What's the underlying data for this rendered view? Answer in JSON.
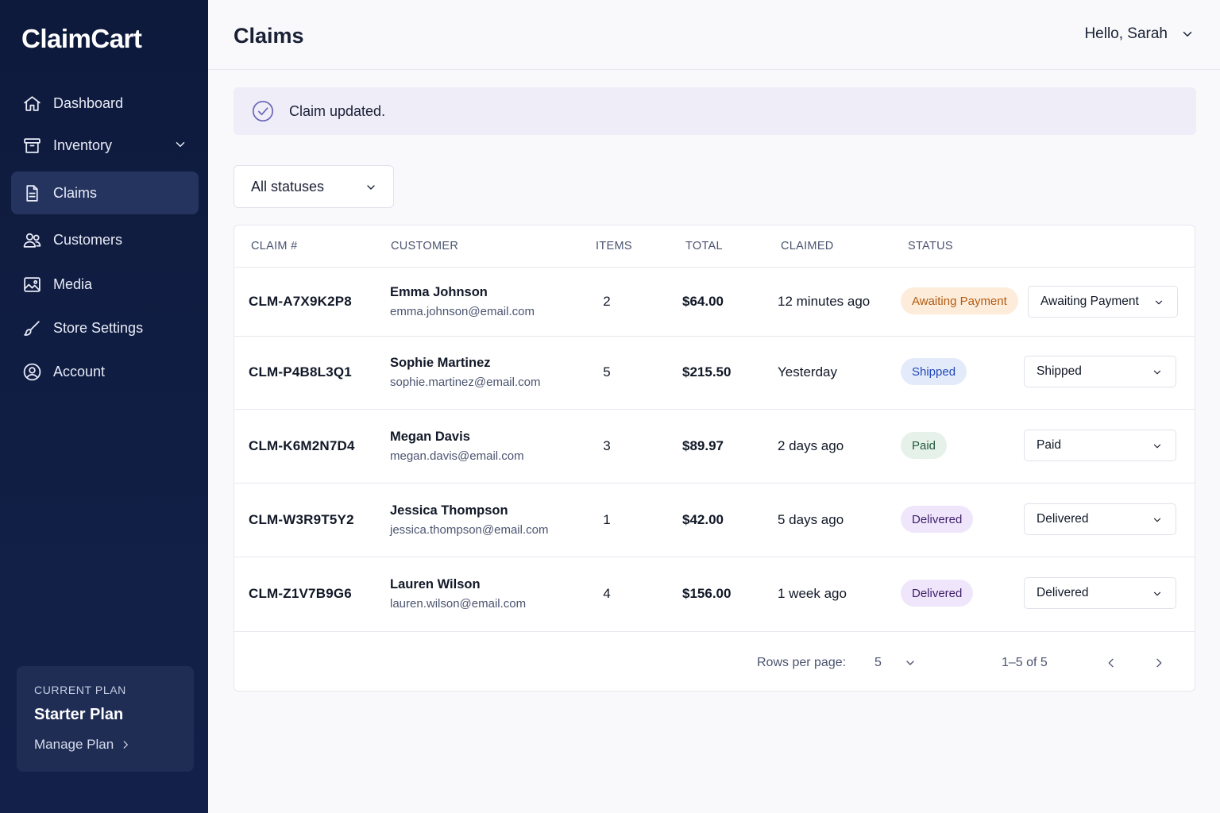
{
  "sidebar": {
    "brand": "ClaimCart",
    "items": [
      {
        "label": "Dashboard",
        "icon": "home-icon"
      },
      {
        "label": "Inventory",
        "icon": "archive-box-icon",
        "has_chevron": true
      },
      {
        "label": "Claims",
        "icon": "document-icon",
        "active": true
      },
      {
        "label": "Customers",
        "icon": "users-icon"
      },
      {
        "label": "Media",
        "icon": "image-icon"
      },
      {
        "label": "Store Settings",
        "icon": "brush-icon"
      },
      {
        "label": "Account",
        "icon": "user-circle-icon"
      }
    ],
    "plan": {
      "label": "CURRENT PLAN",
      "name": "Starter Plan",
      "link": "Manage Plan"
    }
  },
  "header": {
    "title": "Claims",
    "greeting": "Hello, Sarah"
  },
  "alert": {
    "message": "Claim updated.",
    "icon": "check-circle-icon"
  },
  "filter": {
    "selected": "All statuses"
  },
  "table": {
    "headers": {
      "claim": "CLAIM #",
      "customer": "CUSTOMER",
      "items": "ITEMS",
      "total": "TOTAL",
      "claimed": "CLAIMED",
      "status": "STATUS"
    },
    "rows": [
      {
        "id": "CLM-A7X9K2P8",
        "name": "Emma Johnson",
        "email": "emma.johnson@email.com",
        "items": "2",
        "total": "$64.00",
        "claimed": "12 minutes ago",
        "status": "Awaiting Payment",
        "select": "Awaiting Payment"
      },
      {
        "id": "CLM-P4B8L3Q1",
        "name": "Sophie Martinez",
        "email": "sophie.martinez@email.com",
        "items": "5",
        "total": "$215.50",
        "claimed": "Yesterday",
        "status": "Shipped",
        "select": "Shipped"
      },
      {
        "id": "CLM-K6M2N7D4",
        "name": "Megan Davis",
        "email": "megan.davis@email.com",
        "items": "3",
        "total": "$89.97",
        "claimed": "2 days ago",
        "status": "Paid",
        "select": "Paid"
      },
      {
        "id": "CLM-W3R9T5Y2",
        "name": "Jessica Thompson",
        "email": "jessica.thompson@email.com",
        "items": "1",
        "total": "$42.00",
        "claimed": "5 days ago",
        "status": "Delivered",
        "select": "Delivered"
      },
      {
        "id": "CLM-Z1V7B9G6",
        "name": "Lauren Wilson",
        "email": "lauren.wilson@email.com",
        "items": "4",
        "total": "$156.00",
        "claimed": "1 week ago",
        "status": "Delivered",
        "select": "Delivered"
      }
    ]
  },
  "pagination": {
    "rows_label": "Rows per page:",
    "rows_value": "5",
    "range": "1–5 of 5"
  },
  "colors": {
    "sidebar_bg": "#0e1a3c",
    "sidebar_active": "#24345f",
    "alert_bg": "#efedf8",
    "badge_awaiting_bg": "#fdecd9",
    "badge_awaiting_fg": "#b25a12",
    "badge_shipped_bg": "#e3ebfb",
    "badge_shipped_fg": "#1f47b8",
    "badge_paid_bg": "#e6f1ea",
    "badge_paid_fg": "#23593a",
    "badge_delivered_bg": "#f0e6fb",
    "badge_delivered_fg": "#3c1e68"
  }
}
